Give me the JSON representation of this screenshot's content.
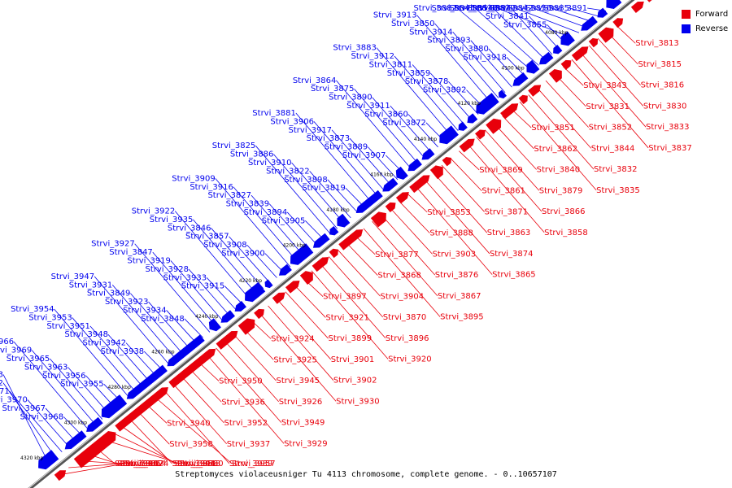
{
  "legend": {
    "forward_label": "Forward",
    "reverse_label": "Reverse",
    "forward_color": "#e8000b",
    "reverse_color": "#0000ee"
  },
  "caption": "Streptomyces violaceusniger Tu 4113 chromosome, complete genome. - 0..10657107",
  "ticks": [
    "4060 kbp",
    "4080 kbp",
    "4100 kbp",
    "4120 kbp",
    "4140 kbp",
    "4160 kbp",
    "4180 kbp",
    "4200 kbp",
    "4220 kbp",
    "4240 kbp",
    "4260 kbp",
    "4280 kbp",
    "4300 kbp",
    "4320 kbp"
  ],
  "reverse_genes": [
    "Strvi_3891",
    "Strvi_3885",
    "Strvi_3856",
    "Strvi_3842",
    "Strvi_3829",
    "Strvi_3838",
    "Strvi_3855",
    "Strvi_3841",
    "Strvi_3884",
    "Strvi_3854",
    "Strvi_3845",
    "Strvi_3882",
    "Strvi_3918",
    "Strvi_3880",
    "Strvi_3893",
    "Strvi_3914",
    "Strvi_3850",
    "Strvi_3913",
    "Strvi_3892",
    "Strvi_3878",
    "Strvi_3859",
    "Strvi_3811",
    "Strvi_3912",
    "Strvi_3883",
    "Strvi_3872",
    "Strvi_3860",
    "Strvi_3911",
    "Strvi_3890",
    "Strvi_3875",
    "Strvi_3864",
    "Strvi_3907",
    "Strvi_3889",
    "Strvi_3873",
    "Strvi_3917",
    "Strvi_3906",
    "Strvi_3881",
    "Strvi_3819",
    "Strvi_3898",
    "Strvi_3822",
    "Strvi_3910",
    "Strvi_3886",
    "Strvi_3825",
    "Strvi_3905",
    "Strvi_3894",
    "Strvi_3839",
    "Strvi_3827",
    "Strvi_3916",
    "Strvi_3909",
    "Strvi_3900",
    "Strvi_3908",
    "Strvi_3857",
    "Strvi_3846",
    "Strvi_3935",
    "Strvi_3922",
    "Strvi_3915",
    "Strvi_3933",
    "Strvi_3928",
    "Strvi_3919",
    "Strvi_3847",
    "Strvi_3927",
    "Strvi_3848",
    "Strvi_3934",
    "Strvi_3923",
    "Strvi_3849",
    "Strvi_3931",
    "Strvi_3947",
    "Strvi_3938",
    "Strvi_3942",
    "Strvi_3948",
    "Strvi_3951",
    "Strvi_3953",
    "Strvi_3954",
    "Strvi_3955",
    "Strvi_3956",
    "Strvi_3963",
    "Strvi_3965",
    "Strvi_3969",
    "Strvi_3966",
    "Strvi_3968",
    "Strvi_3967",
    "Strvi_3970",
    "Strvi_3971",
    "Strvi_3972",
    "Strvi_3973"
  ],
  "forward_genes": [
    "Strvi_3813",
    "Strvi_3815",
    "Strvi_3816",
    "Strvi_3830",
    "Strvi_3833",
    "Strvi_3837",
    "Strvi_3843",
    "Strvi_3831",
    "Strvi_3852",
    "Strvi_3844",
    "Strvi_3832",
    "Strvi_3835",
    "Strvi_3851",
    "Strvi_3862",
    "Strvi_3840",
    "Strvi_3879",
    "Strvi_3866",
    "Strvi_3858",
    "Strvi_3869",
    "Strvi_3861",
    "Strvi_3871",
    "Strvi_3863",
    "Strvi_3874",
    "Strvi_3865",
    "Strvi_3853",
    "Strvi_3888",
    "Strvi_3903",
    "Strvi_3876",
    "Strvi_3867",
    "Strvi_3895",
    "Strvi_3877",
    "Strvi_3868",
    "Strvi_3904",
    "Strvi_3870",
    "Strvi_3896",
    "Strvi_3920",
    "Strvi_3897",
    "Strvi_3921",
    "Strvi_3899",
    "Strvi_3901",
    "Strvi_3902",
    "Strvi_3930",
    "Strvi_3924",
    "Strvi_3925",
    "Strvi_3945",
    "Strvi_3926",
    "Strvi_3949",
    "Strvi_3929",
    "Strvi_3950",
    "Strvi_3936",
    "Strvi_3952",
    "Strvi_3937",
    "Strvi_3939",
    "Strvi_3957",
    "Strvi_3940",
    "Strvi_3958",
    "Strvi_3941",
    "Strvi_3959",
    "Strvi_3943",
    "Strvi_3960",
    "Strvi_3944",
    "Strvi_3961",
    "Strvi_3962",
    "Strvi_3964",
    "Strvi_3974"
  ]
}
